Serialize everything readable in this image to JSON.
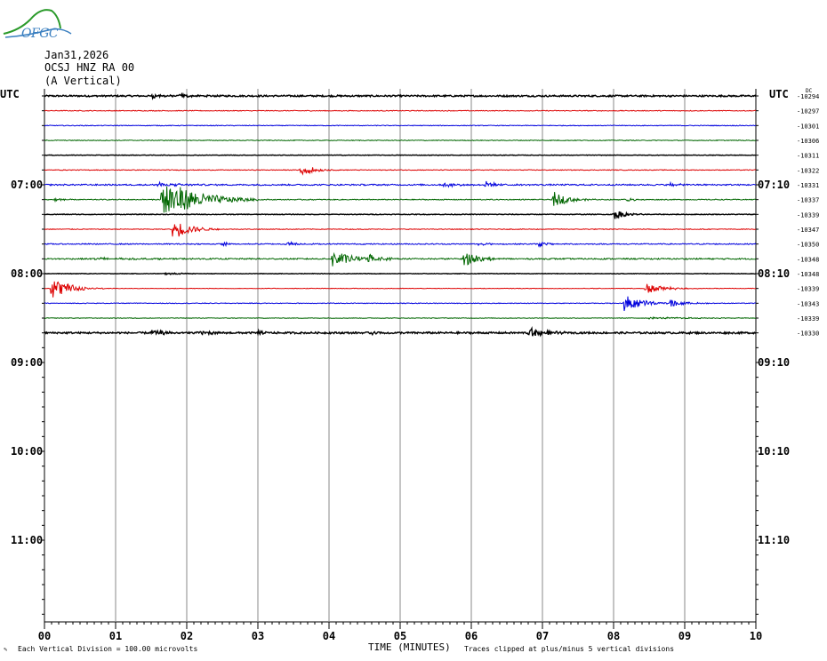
{
  "header": {
    "logo_text": "OFGC",
    "date": "Jan31,2026",
    "station": "OCSJ HNZ RA 00",
    "component": "(A Vertical)"
  },
  "left_axis_label": "UTC",
  "right_axis_label": "UTC",
  "dc_label": "DC",
  "footer": {
    "scale_note": "Each Vertical Division =  100.00 microvolts",
    "time_label": "TIME (MINUTES)",
    "clip_note": "Traces clipped at plus/minus 5 vertical divisions"
  },
  "colors": {
    "trace_cycle": [
      "#000000",
      "#dd0000",
      "#0000dd",
      "#006600"
    ],
    "grid": "#888888",
    "logo_green": "#2a9a2a",
    "logo_blue": "#3a7fc0"
  },
  "chart_data": {
    "type": "line",
    "title": "",
    "xlabel": "TIME (MINUTES)",
    "xlim": [
      0,
      10
    ],
    "x_tick_labels": [
      "00",
      "01",
      "02",
      "03",
      "04",
      "05",
      "06",
      "07",
      "08",
      "09",
      "10"
    ],
    "rows_per_hour": 6,
    "minutes_per_row": 10,
    "total_rows": 36,
    "left_hour_labels": [
      {
        "row": 6,
        "label": "07:00"
      },
      {
        "row": 12,
        "label": "08:00"
      },
      {
        "row": 18,
        "label": "09:00"
      },
      {
        "row": 24,
        "label": "10:00"
      },
      {
        "row": 30,
        "label": "11:00"
      }
    ],
    "right_hour_labels": [
      {
        "row": 6,
        "label": "07:10"
      },
      {
        "row": 12,
        "label": "08:10"
      },
      {
        "row": 18,
        "label": "09:10"
      },
      {
        "row": 24,
        "label": "10:10"
      },
      {
        "row": 30,
        "label": "11:10"
      }
    ],
    "series": [
      {
        "row": 0,
        "dc": "-10294",
        "noise": 0.18,
        "events": [
          {
            "t": 1.5,
            "amp": 0.5,
            "dur": 0.15
          },
          {
            "t": 1.9,
            "amp": 0.4,
            "dur": 0.15
          }
        ]
      },
      {
        "row": 1,
        "dc": "-10297",
        "noise": 0.08,
        "events": []
      },
      {
        "row": 2,
        "dc": "-10301",
        "noise": 0.08,
        "events": []
      },
      {
        "row": 3,
        "dc": "-10306",
        "noise": 0.08,
        "events": []
      },
      {
        "row": 4,
        "dc": "-10311",
        "noise": 0.06,
        "events": []
      },
      {
        "row": 5,
        "dc": "-10322",
        "noise": 0.08,
        "events": [
          {
            "t": 3.6,
            "amp": 1.4,
            "dur": 0.18
          }
        ]
      },
      {
        "row": 6,
        "dc": "-10331",
        "noise": 0.16,
        "events": [
          {
            "t": 1.55,
            "amp": 0.6,
            "dur": 0.3
          },
          {
            "t": 5.6,
            "amp": 0.6,
            "dur": 0.15
          },
          {
            "t": 6.2,
            "amp": 0.8,
            "dur": 0.15
          },
          {
            "t": 8.8,
            "amp": 0.5,
            "dur": 0.1
          }
        ]
      },
      {
        "row": 7,
        "dc": "-10337",
        "noise": 0.1,
        "events": [
          {
            "t": 0.15,
            "amp": 0.6,
            "dur": 0.08
          },
          {
            "t": 1.65,
            "amp": 5.0,
            "dur": 0.45
          },
          {
            "t": 7.15,
            "amp": 1.8,
            "dur": 0.2
          },
          {
            "t": 8.2,
            "amp": 0.5,
            "dur": 0.1
          }
        ]
      },
      {
        "row": 8,
        "dc": "-10339",
        "noise": 0.08,
        "events": [
          {
            "t": 8.0,
            "amp": 1.2,
            "dur": 0.15
          }
        ]
      },
      {
        "row": 9,
        "dc": "-10347",
        "noise": 0.08,
        "events": [
          {
            "t": 1.8,
            "amp": 2.5,
            "dur": 0.22
          }
        ]
      },
      {
        "row": 10,
        "dc": "-10350",
        "noise": 0.12,
        "events": [
          {
            "t": 2.5,
            "amp": 0.5,
            "dur": 0.1
          },
          {
            "t": 3.4,
            "amp": 0.6,
            "dur": 0.15
          },
          {
            "t": 6.95,
            "amp": 0.6,
            "dur": 0.12
          },
          {
            "t": 6.1,
            "amp": 0.4,
            "dur": 0.12
          }
        ]
      },
      {
        "row": 11,
        "dc": "-10348",
        "noise": 0.15,
        "events": [
          {
            "t": 0.7,
            "amp": 0.3,
            "dur": 0.5
          },
          {
            "t": 4.05,
            "amp": 2.0,
            "dur": 0.25
          },
          {
            "t": 4.55,
            "amp": 1.0,
            "dur": 0.18
          },
          {
            "t": 5.9,
            "amp": 1.8,
            "dur": 0.2
          }
        ]
      },
      {
        "row": 12,
        "dc": "-10348",
        "noise": 0.06,
        "events": [
          {
            "t": 1.7,
            "amp": 0.3,
            "dur": 0.2
          }
        ]
      },
      {
        "row": 13,
        "dc": "-10339",
        "noise": 0.06,
        "events": [
          {
            "t": 0.1,
            "amp": 2.5,
            "dur": 0.25
          },
          {
            "t": 8.45,
            "amp": 1.2,
            "dur": 0.25
          }
        ]
      },
      {
        "row": 14,
        "dc": "-10343",
        "noise": 0.08,
        "events": [
          {
            "t": 8.15,
            "amp": 2.0,
            "dur": 0.25
          },
          {
            "t": 8.8,
            "amp": 0.9,
            "dur": 0.2
          }
        ]
      },
      {
        "row": 15,
        "dc": "-10339",
        "noise": 0.06,
        "events": [
          {
            "t": 8.5,
            "amp": 0.2,
            "dur": 0.8
          }
        ]
      },
      {
        "row": 16,
        "dc": "-10330",
        "noise": 0.2,
        "events": [
          {
            "t": 1.5,
            "amp": 0.5,
            "dur": 0.25
          },
          {
            "t": 2.2,
            "amp": 0.7,
            "dur": 0.1
          },
          {
            "t": 3.0,
            "amp": 0.5,
            "dur": 0.1
          },
          {
            "t": 4.6,
            "amp": 0.5,
            "dur": 0.1
          },
          {
            "t": 6.8,
            "amp": 1.2,
            "dur": 0.2
          }
        ]
      }
    ]
  }
}
